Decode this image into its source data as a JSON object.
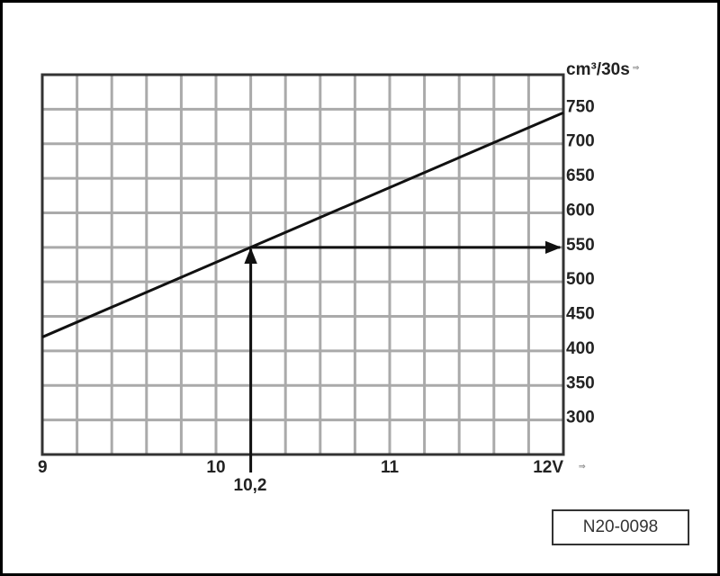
{
  "chart_data": {
    "type": "line",
    "xlabel": "V",
    "xlabel_note": "⇒",
    "ylabel": "cm³/30s",
    "ylabel_note": "⇒",
    "xlim": [
      9,
      12
    ],
    "ylim": [
      250,
      800
    ],
    "x_ticks": [
      "9",
      "10",
      "11",
      "12"
    ],
    "y_ticks": [
      "750",
      "700",
      "650",
      "600",
      "550",
      "500",
      "450",
      "400",
      "350",
      "300"
    ],
    "grid": true,
    "series": [
      {
        "x": [
          9,
          12
        ],
        "y": [
          420,
          745
        ]
      }
    ],
    "annotation": {
      "x": 10.2,
      "y": 550,
      "x_label": "10,2"
    }
  },
  "reference": "N20-0098"
}
